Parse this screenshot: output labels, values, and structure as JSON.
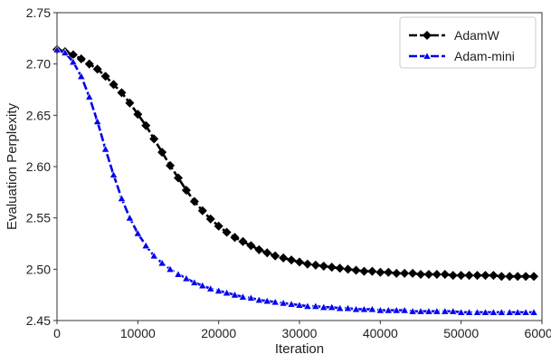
{
  "chart_data": {
    "type": "line",
    "title": "",
    "xlabel": "Iteration",
    "ylabel": "Evaluation Perplexity",
    "xlim": [
      0,
      60000
    ],
    "ylim": [
      2.45,
      2.75
    ],
    "xticks": [
      "0",
      "10000",
      "20000",
      "30000",
      "40000",
      "50000",
      "60000"
    ],
    "yticks": [
      "2.45",
      "2.50",
      "2.55",
      "2.60",
      "2.65",
      "2.70",
      "2.75"
    ],
    "grid": false,
    "legend_position": "top-right",
    "series": [
      {
        "name": "AdamW",
        "color": "#000000",
        "marker": "diamond",
        "line_style": "dashed",
        "x": [
          0,
          1000,
          2000,
          3000,
          4000,
          5000,
          6000,
          7000,
          8000,
          9000,
          10000,
          11000,
          12000,
          13000,
          14000,
          15000,
          16000,
          17000,
          18000,
          19000,
          20000,
          21000,
          22000,
          23000,
          24000,
          25000,
          26000,
          27000,
          28000,
          29000,
          30000,
          31000,
          32000,
          33000,
          34000,
          35000,
          36000,
          37000,
          38000,
          39000,
          40000,
          41000,
          42000,
          43000,
          44000,
          45000,
          46000,
          47000,
          48000,
          49000,
          50000,
          51000,
          52000,
          53000,
          54000,
          55000,
          56000,
          57000,
          58000,
          59000
        ],
        "y": [
          2.714,
          2.712,
          2.709,
          2.705,
          2.7,
          2.695,
          2.688,
          2.68,
          2.672,
          2.662,
          2.651,
          2.64,
          2.627,
          2.614,
          2.601,
          2.589,
          2.577,
          2.566,
          2.557,
          2.549,
          2.542,
          2.536,
          2.531,
          2.527,
          2.523,
          2.519,
          2.516,
          2.513,
          2.511,
          2.509,
          2.507,
          2.505,
          2.504,
          2.503,
          2.502,
          2.501,
          2.5,
          2.499,
          2.498,
          2.498,
          2.497,
          2.497,
          2.496,
          2.496,
          2.496,
          2.495,
          2.495,
          2.495,
          2.495,
          2.494,
          2.494,
          2.494,
          2.494,
          2.494,
          2.494,
          2.493,
          2.493,
          2.493,
          2.493,
          2.493
        ]
      },
      {
        "name": "Adam-mini",
        "color": "#0000ee",
        "marker": "triangle",
        "line_style": "dashed",
        "x": [
          0,
          1000,
          2000,
          3000,
          4000,
          5000,
          6000,
          7000,
          8000,
          9000,
          10000,
          11000,
          12000,
          13000,
          14000,
          15000,
          16000,
          17000,
          18000,
          19000,
          20000,
          21000,
          22000,
          23000,
          24000,
          25000,
          26000,
          27000,
          28000,
          29000,
          30000,
          31000,
          32000,
          33000,
          34000,
          35000,
          36000,
          37000,
          38000,
          39000,
          40000,
          41000,
          42000,
          43000,
          44000,
          45000,
          46000,
          47000,
          48000,
          49000,
          50000,
          51000,
          52000,
          53000,
          54000,
          55000,
          56000,
          57000,
          58000,
          59000
        ],
        "y": [
          2.714,
          2.711,
          2.702,
          2.688,
          2.668,
          2.644,
          2.617,
          2.592,
          2.569,
          2.55,
          2.535,
          2.523,
          2.513,
          2.506,
          2.5,
          2.495,
          2.491,
          2.487,
          2.484,
          2.481,
          2.479,
          2.477,
          2.475,
          2.473,
          2.472,
          2.47,
          2.469,
          2.468,
          2.467,
          2.466,
          2.465,
          2.464,
          2.464,
          2.463,
          2.463,
          2.462,
          2.462,
          2.461,
          2.461,
          2.461,
          2.46,
          2.46,
          2.46,
          2.46,
          2.459,
          2.459,
          2.459,
          2.459,
          2.459,
          2.459,
          2.458,
          2.458,
          2.458,
          2.458,
          2.458,
          2.458,
          2.458,
          2.458,
          2.458,
          2.458
        ]
      }
    ]
  }
}
